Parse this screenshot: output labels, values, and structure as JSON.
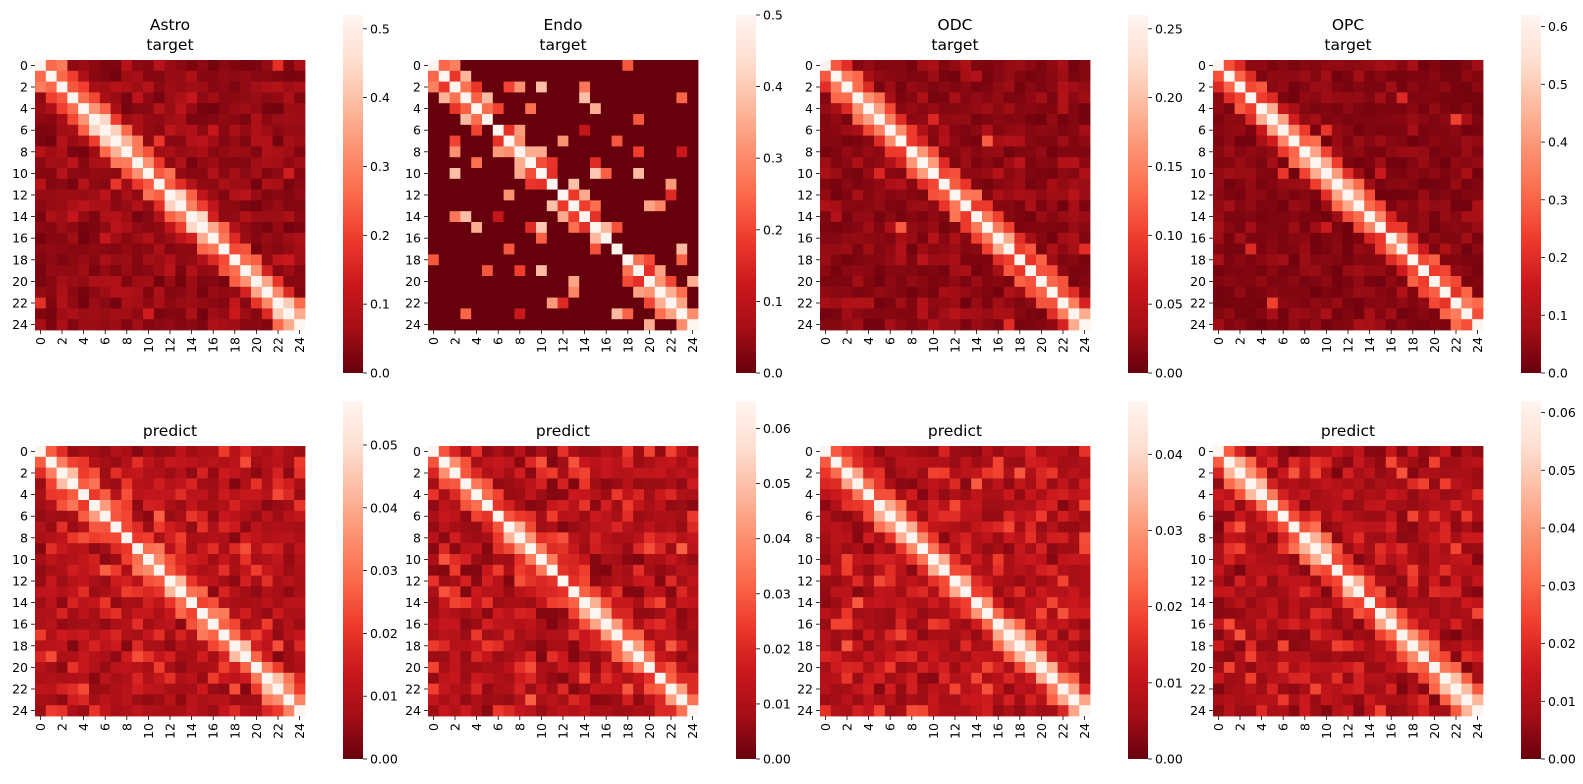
{
  "chart_data": [
    {
      "type": "heatmap",
      "title": [
        "Astro",
        "target"
      ],
      "n": 25,
      "tick_labels": [
        "0",
        "2",
        "4",
        "6",
        "8",
        "10",
        "12",
        "14",
        "16",
        "18",
        "20",
        "22",
        "24"
      ],
      "vmin": 0,
      "vmax": 0.52,
      "colorbar_ticks": [
        "0.0",
        "0.1",
        "0.2",
        "0.3",
        "0.4",
        "0.5"
      ],
      "colorbar_values": [
        0,
        0.1,
        0.2,
        0.3,
        0.4,
        0.5
      ],
      "cmap": "Reds_r",
      "diagonal_peak": 0.45,
      "background_level": 0.06,
      "seed": 11
    },
    {
      "type": "heatmap",
      "title": [
        "Endo",
        "target"
      ],
      "n": 25,
      "tick_labels": [
        "0",
        "2",
        "4",
        "6",
        "8",
        "10",
        "12",
        "14",
        "16",
        "18",
        "20",
        "22",
        "24"
      ],
      "vmin": 0,
      "vmax": 0.5,
      "colorbar_ticks": [
        "0.0",
        "0.1",
        "0.2",
        "0.3",
        "0.4",
        "0.5"
      ],
      "colorbar_values": [
        0,
        0.1,
        0.2,
        0.3,
        0.4,
        0.5
      ],
      "cmap": "Reds_r",
      "diagonal_peak": 0.4,
      "background_level": 0.0,
      "seed": 23
    },
    {
      "type": "heatmap",
      "title": [
        "ODC",
        "target"
      ],
      "n": 25,
      "tick_labels": [
        "0",
        "2",
        "4",
        "6",
        "8",
        "10",
        "12",
        "14",
        "16",
        "18",
        "20",
        "22",
        "24"
      ],
      "vmin": 0,
      "vmax": 0.26,
      "colorbar_ticks": [
        "0.00",
        "0.05",
        "0.10",
        "0.15",
        "0.20",
        "0.25"
      ],
      "colorbar_values": [
        0,
        0.05,
        0.1,
        0.15,
        0.2,
        0.25
      ],
      "cmap": "Reds_r",
      "diagonal_peak": 0.2,
      "background_level": 0.025,
      "seed": 37
    },
    {
      "type": "heatmap",
      "title": [
        "OPC",
        "target"
      ],
      "n": 25,
      "tick_labels": [
        "0",
        "2",
        "4",
        "6",
        "8",
        "10",
        "12",
        "14",
        "16",
        "18",
        "20",
        "22",
        "24"
      ],
      "vmin": 0,
      "vmax": 0.62,
      "colorbar_ticks": [
        "0.0",
        "0.1",
        "0.2",
        "0.3",
        "0.4",
        "0.5",
        "0.6"
      ],
      "colorbar_values": [
        0,
        0.1,
        0.2,
        0.3,
        0.4,
        0.5,
        0.6
      ],
      "cmap": "Reds_r",
      "diagonal_peak": 0.45,
      "background_level": 0.05,
      "seed": 41
    },
    {
      "type": "heatmap",
      "title": [
        "predict"
      ],
      "n": 25,
      "tick_labels": [
        "0",
        "2",
        "4",
        "6",
        "8",
        "10",
        "12",
        "14",
        "16",
        "18",
        "20",
        "22",
        "24"
      ],
      "vmin": 0,
      "vmax": 0.057,
      "colorbar_ticks": [
        "0.00",
        "0.01",
        "0.02",
        "0.03",
        "0.04",
        "0.05"
      ],
      "colorbar_values": [
        0,
        0.01,
        0.02,
        0.03,
        0.04,
        0.05
      ],
      "cmap": "Reds_r",
      "diagonal_peak": 0.045,
      "background_level": 0.014,
      "seed": 53
    },
    {
      "type": "heatmap",
      "title": [
        "predict"
      ],
      "n": 25,
      "tick_labels": [
        "0",
        "2",
        "4",
        "6",
        "8",
        "10",
        "12",
        "14",
        "16",
        "18",
        "20",
        "22",
        "24"
      ],
      "vmin": 0,
      "vmax": 0.065,
      "colorbar_ticks": [
        "0.00",
        "0.01",
        "0.02",
        "0.03",
        "0.04",
        "0.05",
        "0.06"
      ],
      "colorbar_values": [
        0,
        0.01,
        0.02,
        0.03,
        0.04,
        0.05,
        0.06
      ],
      "cmap": "Reds_r",
      "diagonal_peak": 0.048,
      "background_level": 0.015,
      "seed": 67
    },
    {
      "type": "heatmap",
      "title": [
        "predict"
      ],
      "n": 25,
      "tick_labels": [
        "0",
        "2",
        "4",
        "6",
        "8",
        "10",
        "12",
        "14",
        "16",
        "18",
        "20",
        "22",
        "24"
      ],
      "vmin": 0,
      "vmax": 0.047,
      "colorbar_ticks": [
        "0.00",
        "0.01",
        "0.02",
        "0.03",
        "0.04"
      ],
      "colorbar_values": [
        0,
        0.01,
        0.02,
        0.03,
        0.04
      ],
      "cmap": "Reds_r",
      "diagonal_peak": 0.036,
      "background_level": 0.011,
      "seed": 79
    },
    {
      "type": "heatmap",
      "title": [
        "predict"
      ],
      "n": 25,
      "tick_labels": [
        "0",
        "2",
        "4",
        "6",
        "8",
        "10",
        "12",
        "14",
        "16",
        "18",
        "20",
        "22",
        "24"
      ],
      "vmin": 0,
      "vmax": 0.062,
      "colorbar_ticks": [
        "0.00",
        "0.01",
        "0.02",
        "0.03",
        "0.04",
        "0.05",
        "0.06"
      ],
      "colorbar_values": [
        0,
        0.01,
        0.02,
        0.03,
        0.04,
        0.05,
        0.06
      ],
      "cmap": "Reds_r",
      "diagonal_peak": 0.048,
      "background_level": 0.013,
      "seed": 97
    }
  ]
}
